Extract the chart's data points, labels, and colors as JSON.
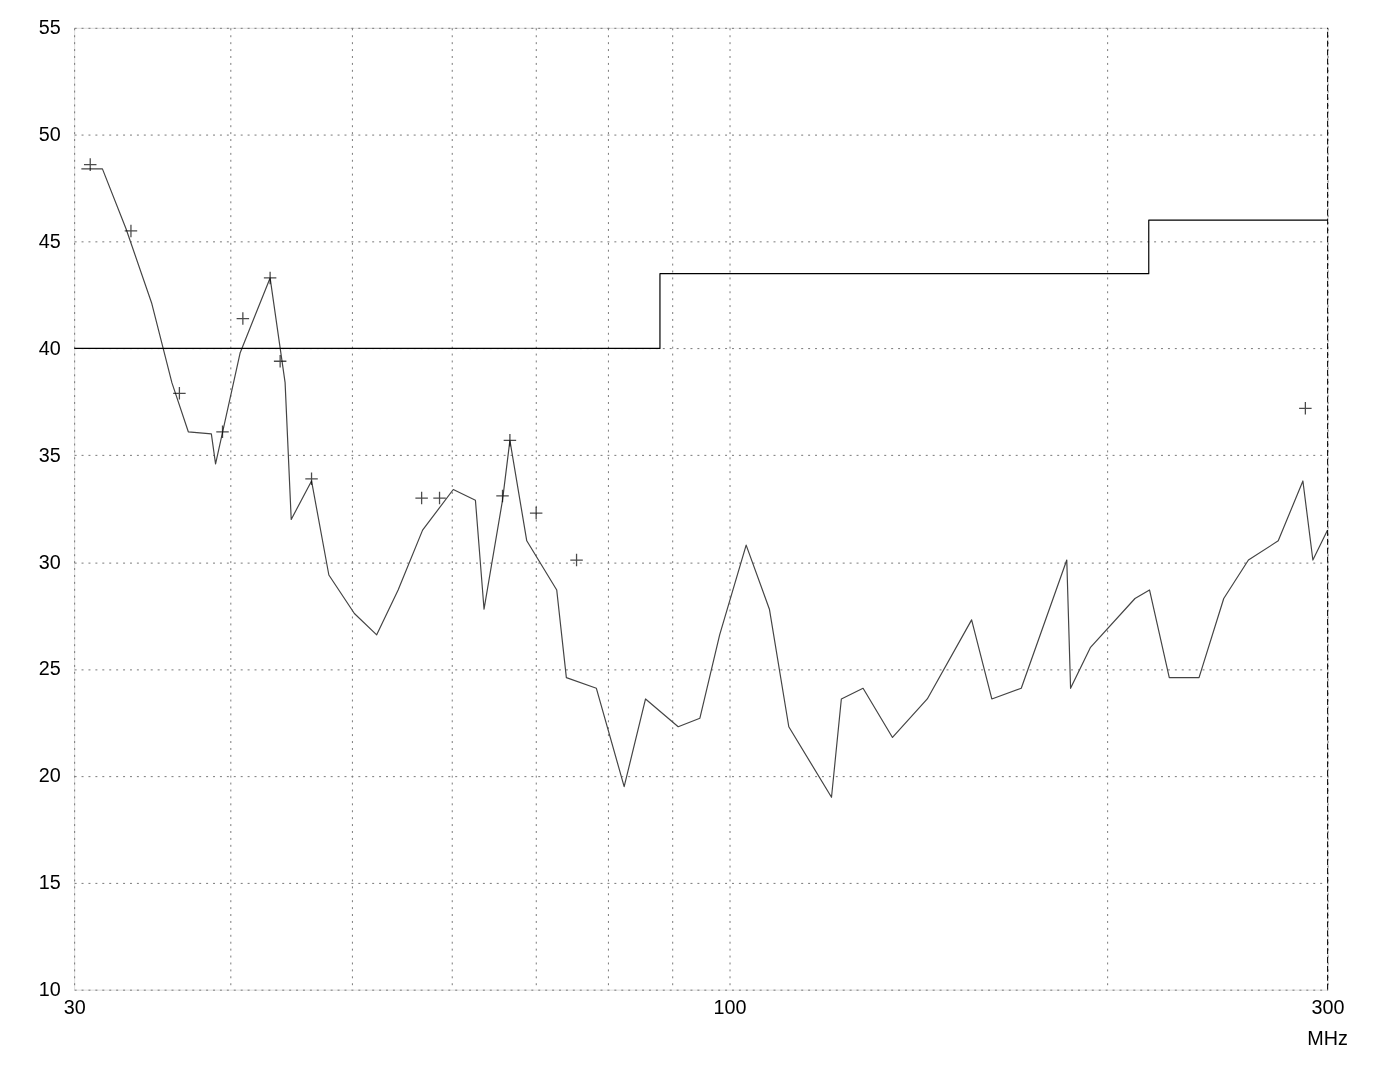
{
  "chart_data": {
    "type": "line",
    "xlabel": "MHz",
    "log": "x",
    "grid": true,
    "legend": false,
    "xlim": [
      30,
      300
    ],
    "ylim": [
      10,
      55
    ],
    "xticks": [
      30,
      {
        "value": 40,
        "label": null
      },
      {
        "value": 50,
        "label": null
      },
      {
        "value": 60,
        "label": null
      },
      {
        "value": 70,
        "label": null
      },
      {
        "value": 80,
        "label": null
      },
      {
        "value": 90,
        "label": null
      },
      100,
      {
        "value": 200,
        "label": null
      },
      300
    ],
    "yticks": [
      10,
      15,
      20,
      25,
      30,
      35,
      40,
      45,
      50,
      55
    ],
    "series": [
      {
        "type": "line",
        "color": "#444444",
        "x": [
          30.4,
          31.6,
          33.0,
          34.6,
          35.9,
          37.0,
          38.6,
          38.9,
          40.7,
          43.0,
          44.2,
          44.7,
          46.4,
          47.9,
          50.2,
          52.3,
          54.4,
          56.9,
          60.2,
          62.7,
          63.7,
          65.9,
          66.8,
          68.9,
          72.8,
          74.1,
          78.3,
          82.4,
          85.7,
          91.0,
          94.7,
          98.2,
          103.1,
          107.6,
          111.5,
          120.6,
          122.8,
          127.8,
          134.9,
          143.8,
          156.0,
          161.9,
          170.9,
          185.8,
          187.1,
          194.0,
          210.6,
          216.3,
          224.3,
          236.9,
          247.9,
          259.4,
          274.0,
          286.7,
          292.0,
          300
        ],
        "values": [
          48.4,
          48.4,
          45.6,
          42.1,
          38.4,
          36.1,
          36.0,
          34.6,
          39.8,
          43.3,
          38.4,
          32.0,
          33.8,
          29.4,
          27.6,
          26.6,
          28.7,
          31.5,
          33.4,
          32.9,
          27.8,
          32.9,
          35.7,
          31.0,
          28.7,
          24.6,
          24.1,
          19.5,
          23.6,
          22.3,
          22.7,
          26.6,
          30.8,
          27.8,
          22.3,
          19.0,
          23.6,
          24.1,
          21.8,
          23.6,
          27.3,
          23.6,
          24.1,
          30.1,
          24.1,
          26.0,
          28.3,
          28.7,
          24.6,
          24.6,
          28.3,
          30.1,
          31.0,
          33.8,
          30.1,
          31.5
        ]
      },
      {
        "type": "line",
        "color": "#000000",
        "x": [
          30,
          88,
          88,
          216,
          216,
          300
        ],
        "values": [
          40,
          40,
          43.5,
          43.5,
          46,
          46
        ]
      },
      {
        "type": "scatter",
        "color": "#000000",
        "marker": "cross",
        "x": [
          30.9,
          33.3,
          36.4,
          39.4,
          40.9,
          43.0,
          43.8,
          46.4,
          56.8,
          58.7,
          65.9,
          66.8,
          70.1,
          75.5,
          288
        ],
        "values": [
          48.6,
          45.5,
          37.9,
          36.1,
          41.4,
          43.3,
          39.4,
          33.9,
          33.0,
          33.0,
          33.1,
          35.7,
          32.3,
          30.1,
          37.2
        ]
      }
    ]
  }
}
